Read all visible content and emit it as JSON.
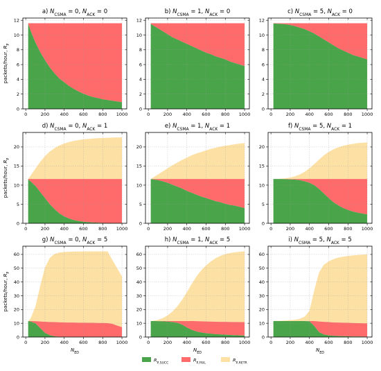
{
  "chart_data": {
    "type": "area",
    "layout": "3x3 grid of stacked area charts",
    "legend_position": "bottom-center",
    "grid": true,
    "x_axis_label": "N_ED",
    "y_axis_label": "packets/hour, R_P",
    "legend": [
      {
        "key": "succ",
        "label": "R_P,SUCC",
        "color": "#4aa44a"
      },
      {
        "key": "fail",
        "label": "R_P,FAIL",
        "color": "#ff6a6a"
      },
      {
        "key": "retr",
        "label": "R_P,RETR",
        "color": "#fde0a4"
      }
    ],
    "x_ticks": [
      0,
      200,
      400,
      600,
      800,
      1000
    ],
    "rows": [
      {
        "ylim": [
          0,
          12.3
        ],
        "y_ticks": [
          0,
          2,
          4,
          6,
          8,
          10,
          12
        ]
      },
      {
        "ylim": [
          0,
          23.8
        ],
        "y_ticks": [
          0,
          5,
          10,
          15,
          20
        ]
      },
      {
        "ylim": [
          0,
          66
        ],
        "y_ticks": [
          0,
          10,
          20,
          30,
          40,
          50,
          60
        ]
      }
    ],
    "x": [
      25,
      50,
      100,
      150,
      200,
      250,
      300,
      350,
      400,
      450,
      500,
      550,
      600,
      650,
      700,
      750,
      800,
      850,
      900,
      950,
      1000
    ],
    "panels": [
      {
        "title": "a) N_CSMA = 0, N_ACK = 0",
        "succ": [
          11.5,
          10.6,
          9.0,
          7.7,
          6.6,
          5.6,
          4.8,
          4.1,
          3.6,
          3.1,
          2.7,
          2.35,
          2.05,
          1.8,
          1.6,
          1.45,
          1.3,
          1.2,
          1.1,
          1.0,
          0.9
        ],
        "fail": [
          11.6,
          11.6,
          11.6,
          11.6,
          11.6,
          11.6,
          11.6,
          11.6,
          11.6,
          11.6,
          11.6,
          11.6,
          11.6,
          11.6,
          11.6,
          11.6,
          11.6,
          11.6,
          11.6,
          11.6,
          11.6
        ],
        "retr": [
          11.6,
          11.6,
          11.6,
          11.6,
          11.6,
          11.6,
          11.6,
          11.6,
          11.6,
          11.6,
          11.6,
          11.6,
          11.6,
          11.6,
          11.6,
          11.6,
          11.6,
          11.6,
          11.6,
          11.6,
          11.6
        ]
      },
      {
        "title": "b) N_CSMA = 1, N_ACK = 0",
        "succ": [
          11.5,
          11.3,
          10.9,
          10.5,
          10.1,
          9.7,
          9.4,
          9.1,
          8.8,
          8.5,
          8.2,
          7.9,
          7.6,
          7.4,
          7.1,
          6.9,
          6.7,
          6.4,
          6.2,
          6.0,
          5.8
        ],
        "fail": [
          11.6,
          11.6,
          11.6,
          11.6,
          11.6,
          11.6,
          11.6,
          11.6,
          11.6,
          11.6,
          11.6,
          11.6,
          11.6,
          11.6,
          11.6,
          11.6,
          11.6,
          11.6,
          11.6,
          11.6,
          11.6
        ],
        "retr": [
          11.6,
          11.6,
          11.6,
          11.6,
          11.6,
          11.6,
          11.6,
          11.6,
          11.6,
          11.6,
          11.6,
          11.6,
          11.6,
          11.6,
          11.6,
          11.6,
          11.6,
          11.6,
          11.6,
          11.6,
          11.6
        ]
      },
      {
        "title": "c) N_CSMA = 5, N_ACK = 0",
        "succ": [
          11.55,
          11.55,
          11.5,
          11.45,
          11.35,
          11.2,
          11.0,
          10.8,
          10.5,
          10.2,
          9.8,
          9.4,
          9.0,
          8.6,
          8.2,
          7.9,
          7.6,
          7.3,
          7.1,
          6.9,
          6.7
        ],
        "fail": [
          11.6,
          11.6,
          11.6,
          11.6,
          11.6,
          11.6,
          11.6,
          11.6,
          11.6,
          11.6,
          11.6,
          11.6,
          11.6,
          11.6,
          11.6,
          11.6,
          11.6,
          11.6,
          11.6,
          11.6,
          11.6
        ],
        "retr": [
          11.6,
          11.6,
          11.6,
          11.6,
          11.6,
          11.6,
          11.6,
          11.6,
          11.6,
          11.6,
          11.6,
          11.6,
          11.6,
          11.6,
          11.6,
          11.6,
          11.6,
          11.6,
          11.6,
          11.6,
          11.6
        ]
      },
      {
        "title": "d) N_CSMA = 0, N_ACK = 1",
        "succ": [
          11.5,
          11.0,
          9.8,
          8.2,
          6.6,
          5.0,
          3.7,
          2.6,
          1.8,
          1.25,
          0.85,
          0.6,
          0.42,
          0.3,
          0.2,
          0.15,
          0.1,
          0.07,
          0.05,
          0.03,
          0.02
        ],
        "fail": [
          11.6,
          11.6,
          11.6,
          11.6,
          11.6,
          11.6,
          11.6,
          11.6,
          11.6,
          11.6,
          11.6,
          11.6,
          11.6,
          11.6,
          11.6,
          11.6,
          11.6,
          11.6,
          11.6,
          11.6,
          11.6
        ],
        "retr": [
          11.6,
          12.5,
          14.3,
          16.1,
          17.6,
          18.8,
          19.7,
          20.4,
          20.9,
          21.3,
          21.6,
          21.8,
          22.0,
          22.1,
          22.2,
          22.3,
          22.35,
          22.4,
          22.45,
          22.5,
          22.5
        ]
      },
      {
        "title": "e) N_CSMA = 1, N_ACK = 1",
        "succ": [
          11.6,
          11.5,
          11.3,
          11.0,
          10.6,
          10.1,
          9.6,
          9.1,
          8.5,
          8.0,
          7.5,
          7.0,
          6.6,
          6.2,
          5.8,
          5.5,
          5.1,
          4.8,
          4.6,
          4.3,
          4.0
        ],
        "fail": [
          11.6,
          11.6,
          11.6,
          11.6,
          11.6,
          11.6,
          11.6,
          11.6,
          11.6,
          11.6,
          11.6,
          11.6,
          11.6,
          11.6,
          11.6,
          11.6,
          11.6,
          11.6,
          11.6,
          11.6,
          11.6
        ],
        "retr": [
          11.6,
          12.0,
          12.8,
          13.6,
          14.4,
          15.2,
          15.9,
          16.6,
          17.2,
          17.8,
          18.3,
          18.7,
          19.1,
          19.5,
          19.8,
          20.1,
          20.3,
          20.5,
          20.7,
          20.9,
          21.0
        ]
      },
      {
        "title": "f) N_CSMA = 5, N_ACK = 1",
        "succ": [
          11.6,
          11.6,
          11.6,
          11.55,
          11.5,
          11.45,
          11.3,
          11.0,
          10.6,
          10.0,
          9.0,
          7.8,
          6.6,
          5.5,
          4.7,
          4.0,
          3.5,
          3.1,
          2.8,
          2.55,
          2.35
        ],
        "fail": [
          11.6,
          11.6,
          11.6,
          11.6,
          11.6,
          11.6,
          11.6,
          11.6,
          11.6,
          11.6,
          11.6,
          11.6,
          11.6,
          11.6,
          11.6,
          11.6,
          11.6,
          11.6,
          11.6,
          11.6,
          11.6
        ],
        "retr": [
          11.6,
          11.6,
          11.7,
          11.8,
          12.0,
          12.3,
          12.8,
          13.5,
          14.4,
          15.5,
          16.7,
          17.8,
          18.7,
          19.4,
          19.9,
          20.3,
          20.6,
          20.8,
          21.0,
          21.1,
          21.2
        ]
      },
      {
        "title": "g) N_CSMA = 0, N_ACK = 5",
        "succ": [
          11.5,
          11.3,
          10.0,
          6.5,
          3.0,
          1.3,
          0.5,
          0.2,
          0.1,
          0.05,
          0.03,
          0.02,
          0.01,
          0.01,
          0.01,
          0.01,
          0.01,
          0.01,
          0.01,
          0.01,
          0.01
        ],
        "fail": [
          11.6,
          11.6,
          11.5,
          11.3,
          11.1,
          10.9,
          10.8,
          10.7,
          10.6,
          10.5,
          10.5,
          10.4,
          10.4,
          10.3,
          10.3,
          10.2,
          10.2,
          10.1,
          9.6,
          8.3,
          7.2
        ],
        "retr": [
          11.6,
          13.5,
          22.0,
          37.0,
          50.5,
          57.5,
          60.3,
          61.4,
          61.8,
          62.0,
          62.1,
          62.1,
          62.2,
          62.2,
          62.2,
          62.2,
          62.2,
          62.2,
          56.0,
          50.0,
          44.0
        ]
      },
      {
        "title": "h) N_CSMA = 1, N_ACK = 5",
        "succ": [
          11.6,
          11.6,
          11.5,
          11.4,
          11.2,
          10.9,
          10.3,
          9.0,
          7.0,
          5.2,
          4.0,
          3.3,
          2.8,
          2.4,
          2.1,
          1.9,
          1.7,
          1.5,
          1.35,
          1.2,
          1.1
        ],
        "fail": [
          11.6,
          11.6,
          11.6,
          11.6,
          11.6,
          11.6,
          11.6,
          11.6,
          11.6,
          11.6,
          11.5,
          11.4,
          11.3,
          11.2,
          11.1,
          11.0,
          11.0,
          10.9,
          10.9,
          10.8,
          10.8
        ],
        "retr": [
          11.6,
          11.8,
          12.5,
          13.8,
          15.7,
          18.5,
          22.2,
          27.0,
          32.5,
          38.5,
          44.0,
          48.5,
          52.0,
          55.0,
          57.3,
          59.0,
          60.2,
          61.0,
          61.6,
          62.0,
          62.3
        ]
      },
      {
        "title": "i) N_CSMA = 5, N_ACK = 5",
        "succ": [
          11.6,
          11.6,
          11.6,
          11.6,
          11.6,
          11.6,
          11.6,
          11.6,
          11.4,
          8.0,
          3.5,
          1.8,
          1.2,
          0.9,
          0.7,
          0.6,
          0.5,
          0.4,
          0.35,
          0.3,
          0.25
        ],
        "fail": [
          11.6,
          11.6,
          11.6,
          11.6,
          11.6,
          11.6,
          11.6,
          11.6,
          11.6,
          11.6,
          11.3,
          11.0,
          10.8,
          10.6,
          10.5,
          10.4,
          10.3,
          10.2,
          10.1,
          10.0,
          9.9
        ],
        "retr": [
          11.6,
          11.7,
          11.8,
          12.0,
          12.2,
          12.6,
          13.3,
          14.8,
          19.0,
          34.0,
          47.0,
          52.5,
          55.0,
          56.6,
          57.7,
          58.4,
          58.9,
          59.3,
          59.6,
          59.8,
          60.0
        ]
      }
    ]
  }
}
